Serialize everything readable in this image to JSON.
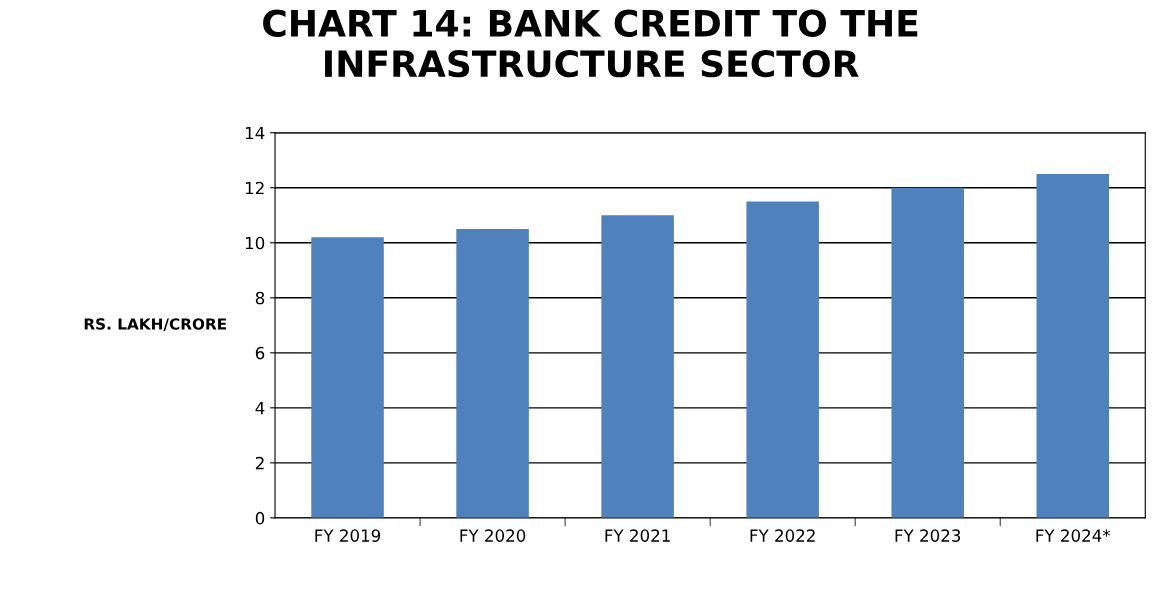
{
  "chart_data": {
    "type": "bar",
    "title": "CHART 14: BANK CREDIT TO THE\nINFRASTRUCTURE SECTOR",
    "ylabel": "RS. LAKH/CRORE",
    "categories": [
      "FY 2019",
      "FY 2020",
      "FY 2021",
      "FY 2022",
      "FY 2023",
      "FY 2024*"
    ],
    "values": [
      10.2,
      10.5,
      11.0,
      11.5,
      12.0,
      12.5
    ],
    "color": "#4f81bd",
    "ylim": [
      0,
      14
    ],
    "yticks": [
      0,
      2,
      4,
      6,
      8,
      10,
      12,
      14
    ],
    "grid": "y"
  }
}
